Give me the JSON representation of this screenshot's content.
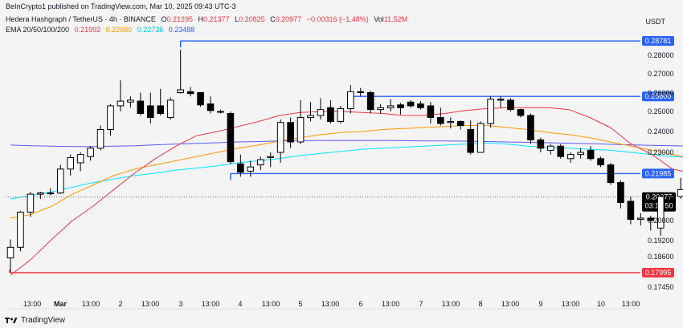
{
  "header": {
    "publisher": "BeInCrypto1 published on TradingView.com, Mar 10, 2025 09:43 UTC-3",
    "symbol": "Hedera Hashgraph / TetherUS · 4h · BINANCE",
    "ohlc": {
      "o_label": "O",
      "o": "0.21295",
      "h_label": "H",
      "h": "0.21377",
      "l_label": "L",
      "l": "0.20825",
      "c_label": "C",
      "c": "0.20977",
      "change": "−0.00316 (−1.48%)",
      "vol_label": "Vol",
      "vol": "11.52M"
    },
    "ema": {
      "label": "EMA 20/50/100/200",
      "v20": "0.21992",
      "v50": "0.22680",
      "v100": "0.22736",
      "v200": "0.23488"
    }
  },
  "currency": "USDT",
  "footer": {
    "brand": "TradingView",
    "logo_icon": "tradingview-logo-icon"
  },
  "colors": {
    "up": "#ffffff",
    "down": "#000000",
    "ema20": "#f23645",
    "ema50": "#ff9800",
    "ema100": "#00e5ff",
    "ema200": "#5b5bf0",
    "level_blue": "#2962ff",
    "level_red": "#f23645",
    "price_tag": "#000000"
  },
  "chart_data": {
    "type": "candlestick",
    "y_axis_ticks": [
      "0.28000",
      "0.27000",
      "0.26000",
      "0.25000",
      "0.24000",
      "0.23000",
      "0.20000",
      "0.19200",
      "0.18600",
      "0.17450"
    ],
    "x_axis_ticks": [
      "13:00",
      "Mar",
      "13:00",
      "2",
      "13:00",
      "3",
      "13:00",
      "4",
      "13:00",
      "5",
      "13:00",
      "6",
      "13:00",
      "7",
      "13:00",
      "8",
      "13:00",
      "9",
      "13:00",
      "10",
      "13:00"
    ],
    "candles": [
      {
        "o": 0.1855,
        "h": 0.1925,
        "l": 0.18,
        "c": 0.1895
      },
      {
        "o": 0.1895,
        "h": 0.204,
        "l": 0.188,
        "c": 0.2035
      },
      {
        "o": 0.2035,
        "h": 0.212,
        "l": 0.2015,
        "c": 0.211
      },
      {
        "o": 0.211,
        "h": 0.212,
        "l": 0.209,
        "c": 0.2115
      },
      {
        "o": 0.2115,
        "h": 0.2135,
        "l": 0.2105,
        "c": 0.2115
      },
      {
        "o": 0.2115,
        "h": 0.224,
        "l": 0.211,
        "c": 0.222
      },
      {
        "o": 0.222,
        "h": 0.229,
        "l": 0.219,
        "c": 0.2275
      },
      {
        "o": 0.225,
        "h": 0.23,
        "l": 0.221,
        "c": 0.229
      },
      {
        "o": 0.228,
        "h": 0.233,
        "l": 0.226,
        "c": 0.232
      },
      {
        "o": 0.232,
        "h": 0.243,
        "l": 0.231,
        "c": 0.241
      },
      {
        "o": 0.241,
        "h": 0.254,
        "l": 0.238,
        "c": 0.253
      },
      {
        "o": 0.253,
        "h": 0.2665,
        "l": 0.25,
        "c": 0.2555
      },
      {
        "o": 0.255,
        "h": 0.258,
        "l": 0.252,
        "c": 0.256
      },
      {
        "o": 0.2555,
        "h": 0.26,
        "l": 0.248,
        "c": 0.249
      },
      {
        "o": 0.253,
        "h": 0.26,
        "l": 0.244,
        "c": 0.247
      },
      {
        "o": 0.253,
        "h": 0.262,
        "l": 0.248,
        "c": 0.249
      },
      {
        "o": 0.247,
        "h": 0.2575,
        "l": 0.246,
        "c": 0.256
      },
      {
        "o": 0.26,
        "h": 0.283,
        "l": 0.2595,
        "c": 0.2615
      },
      {
        "o": 0.2605,
        "h": 0.263,
        "l": 0.258,
        "c": 0.2595
      },
      {
        "o": 0.26,
        "h": 0.26,
        "l": 0.2525,
        "c": 0.2535
      },
      {
        "o": 0.254,
        "h": 0.258,
        "l": 0.249,
        "c": 0.2505
      },
      {
        "o": 0.25,
        "h": 0.251,
        "l": 0.249,
        "c": 0.25
      },
      {
        "o": 0.249,
        "h": 0.25,
        "l": 0.2245,
        "c": 0.2255
      },
      {
        "o": 0.2245,
        "h": 0.229,
        "l": 0.2185,
        "c": 0.2205
      },
      {
        "o": 0.221,
        "h": 0.226,
        "l": 0.2185,
        "c": 0.223
      },
      {
        "o": 0.224,
        "h": 0.228,
        "l": 0.2215,
        "c": 0.2265
      },
      {
        "o": 0.2275,
        "h": 0.23,
        "l": 0.223,
        "c": 0.228
      },
      {
        "o": 0.23,
        "h": 0.246,
        "l": 0.225,
        "c": 0.2445
      },
      {
        "o": 0.2445,
        "h": 0.247,
        "l": 0.232,
        "c": 0.235
      },
      {
        "o": 0.235,
        "h": 0.256,
        "l": 0.234,
        "c": 0.247
      },
      {
        "o": 0.247,
        "h": 0.255,
        "l": 0.245,
        "c": 0.248
      },
      {
        "o": 0.248,
        "h": 0.257,
        "l": 0.246,
        "c": 0.251
      },
      {
        "o": 0.252,
        "h": 0.256,
        "l": 0.244,
        "c": 0.245
      },
      {
        "o": 0.245,
        "h": 0.253,
        "l": 0.244,
        "c": 0.2515
      },
      {
        "o": 0.2515,
        "h": 0.264,
        "l": 0.249,
        "c": 0.2605
      },
      {
        "o": 0.2605,
        "h": 0.2625,
        "l": 0.258,
        "c": 0.26
      },
      {
        "o": 0.26,
        "h": 0.261,
        "l": 0.249,
        "c": 0.251
      },
      {
        "o": 0.251,
        "h": 0.254,
        "l": 0.249,
        "c": 0.252
      },
      {
        "o": 0.252,
        "h": 0.2565,
        "l": 0.25,
        "c": 0.253
      },
      {
        "o": 0.2535,
        "h": 0.2545,
        "l": 0.2485,
        "c": 0.252
      },
      {
        "o": 0.255,
        "h": 0.256,
        "l": 0.252,
        "c": 0.253
      },
      {
        "o": 0.254,
        "h": 0.2555,
        "l": 0.251,
        "c": 0.252
      },
      {
        "o": 0.253,
        "h": 0.255,
        "l": 0.244,
        "c": 0.247
      },
      {
        "o": 0.247,
        "h": 0.252,
        "l": 0.243,
        "c": 0.244
      },
      {
        "o": 0.2445,
        "h": 0.247,
        "l": 0.2415,
        "c": 0.245
      },
      {
        "o": 0.245,
        "h": 0.2455,
        "l": 0.241,
        "c": 0.243
      },
      {
        "o": 0.241,
        "h": 0.2455,
        "l": 0.229,
        "c": 0.23
      },
      {
        "o": 0.23,
        "h": 0.245,
        "l": 0.23,
        "c": 0.244
      },
      {
        "o": 0.244,
        "h": 0.258,
        "l": 0.242,
        "c": 0.2565
      },
      {
        "o": 0.2565,
        "h": 0.258,
        "l": 0.252,
        "c": 0.256
      },
      {
        "o": 0.256,
        "h": 0.257,
        "l": 0.25,
        "c": 0.251
      },
      {
        "o": 0.251,
        "h": 0.2515,
        "l": 0.247,
        "c": 0.248
      },
      {
        "o": 0.248,
        "h": 0.249,
        "l": 0.234,
        "c": 0.236
      },
      {
        "o": 0.236,
        "h": 0.237,
        "l": 0.23,
        "c": 0.232
      },
      {
        "o": 0.231,
        "h": 0.234,
        "l": 0.229,
        "c": 0.233
      },
      {
        "o": 0.233,
        "h": 0.234,
        "l": 0.227,
        "c": 0.228
      },
      {
        "o": 0.227,
        "h": 0.23,
        "l": 0.225,
        "c": 0.229
      },
      {
        "o": 0.229,
        "h": 0.232,
        "l": 0.227,
        "c": 0.23
      },
      {
        "o": 0.231,
        "h": 0.233,
        "l": 0.226,
        "c": 0.227
      },
      {
        "o": 0.227,
        "h": 0.228,
        "l": 0.223,
        "c": 0.224
      },
      {
        "o": 0.224,
        "h": 0.225,
        "l": 0.215,
        "c": 0.216
      },
      {
        "o": 0.216,
        "h": 0.217,
        "l": 0.205,
        "c": 0.2075
      },
      {
        "o": 0.208,
        "h": 0.21,
        "l": 0.1985,
        "c": 0.2005
      },
      {
        "o": 0.2005,
        "h": 0.203,
        "l": 0.198,
        "c": 0.201
      },
      {
        "o": 0.201,
        "h": 0.202,
        "l": 0.196,
        "c": 0.2
      },
      {
        "o": 0.197,
        "h": 0.211,
        "l": 0.194,
        "c": 0.21
      },
      {
        "o": 0.2095,
        "h": 0.2105,
        "l": 0.208,
        "c": 0.21
      },
      {
        "o": 0.21,
        "h": 0.218,
        "l": 0.209,
        "c": 0.213
      },
      {
        "o": 0.213,
        "h": 0.2138,
        "l": 0.2082,
        "c": 0.2098
      }
    ],
    "ema20": [
      0.179,
      0.185,
      0.1925,
      0.2,
      0.206,
      0.213,
      0.22,
      0.227,
      0.233,
      0.238,
      0.24,
      0.2425,
      0.245,
      0.248,
      0.2495,
      0.25,
      0.25,
      0.2495,
      0.249,
      0.248,
      0.248,
      0.249,
      0.2505,
      0.2515,
      0.252,
      0.252,
      0.252,
      0.251,
      0.247,
      0.242,
      0.234,
      0.229,
      0.222,
      0.22
    ],
    "ema50": [
      0.201,
      0.2025,
      0.206,
      0.211,
      0.215,
      0.219,
      0.222,
      0.224,
      0.226,
      0.228,
      0.23,
      0.232,
      0.2335,
      0.2355,
      0.237,
      0.2385,
      0.2395,
      0.24,
      0.241,
      0.2415,
      0.242,
      0.2425,
      0.243,
      0.243,
      0.242,
      0.241,
      0.2395,
      0.2385,
      0.237,
      0.235,
      0.233,
      0.231,
      0.229,
      0.227
    ],
    "ema100": [
      0.209,
      0.2105,
      0.212,
      0.214,
      0.216,
      0.2175,
      0.219,
      0.22,
      0.2215,
      0.2225,
      0.2235,
      0.225,
      0.226,
      0.227,
      0.2285,
      0.2295,
      0.2305,
      0.2315,
      0.232,
      0.2325,
      0.233,
      0.2335,
      0.234,
      0.2345,
      0.234,
      0.233,
      0.2325,
      0.232,
      0.2315,
      0.231,
      0.23,
      0.229,
      0.228,
      0.2275
    ],
    "ema200": [
      0.2335,
      0.2332,
      0.233,
      0.2328,
      0.2328,
      0.233,
      0.2332,
      0.2336,
      0.234,
      0.2343,
      0.2346,
      0.235,
      0.2352,
      0.2355,
      0.2356,
      0.2357,
      0.2357,
      0.2357,
      0.2357,
      0.2356,
      0.2355,
      0.2355,
      0.2354,
      0.2352,
      0.235,
      0.2348,
      0.2346,
      0.2344,
      0.2342,
      0.2339,
      0.2336,
      0.2334,
      0.2332,
      0.233
    ],
    "levels": [
      {
        "label": "0.28781",
        "value": 0.2878,
        "color": "#2962ff",
        "from_index": 17
      },
      {
        "label": "0.25800",
        "value": 0.258,
        "color": "#2962ff",
        "from_index": 34
      },
      {
        "label": "0.21985",
        "value": 0.21985,
        "color": "#2962ff",
        "from_index": 22
      },
      {
        "label": "0.17995",
        "value": 0.17995,
        "color": "#f23645",
        "from_index": 0
      }
    ],
    "current_price": {
      "label": "0.20977",
      "value": 0.20977,
      "countdown": "03:16:50"
    }
  }
}
